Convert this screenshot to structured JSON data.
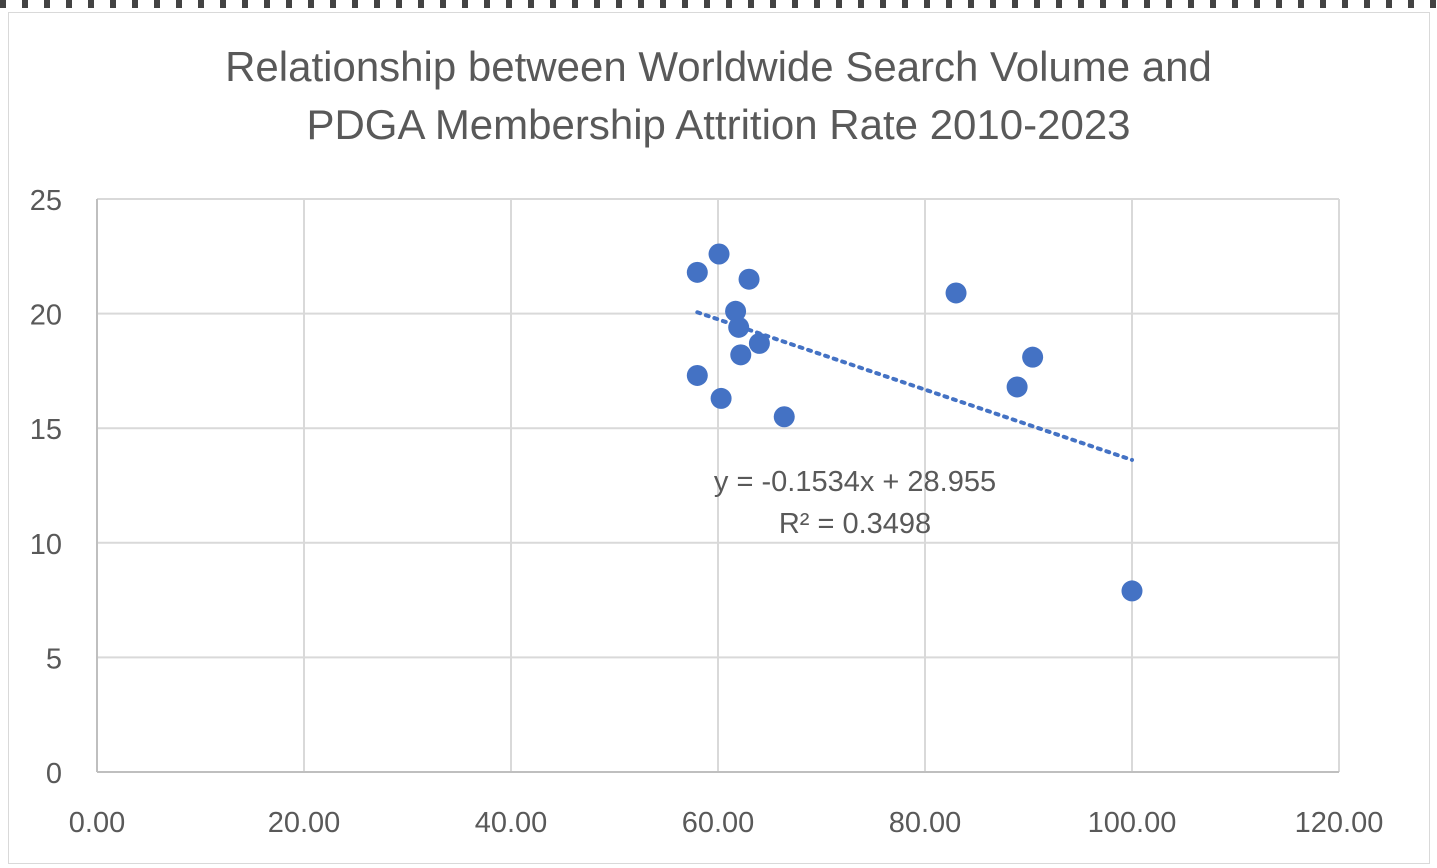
{
  "chart_data": {
    "type": "scatter",
    "title_line1": "Relationship between Worldwide Search Volume and",
    "title_line2": "PDGA Membership Attrition Rate 2010-2023",
    "xlabel": "",
    "ylabel": "",
    "xlim": [
      0,
      120
    ],
    "ylim": [
      0,
      25
    ],
    "x_ticks": [
      0,
      20,
      40,
      60,
      80,
      100,
      120
    ],
    "x_tick_labels": [
      "0.00",
      "20.00",
      "40.00",
      "60.00",
      "80.00",
      "100.00",
      "120.00"
    ],
    "y_ticks": [
      0,
      5,
      10,
      15,
      20,
      25
    ],
    "y_tick_labels": [
      "0",
      "5",
      "10",
      "15",
      "20",
      "25"
    ],
    "grid": true,
    "points": [
      {
        "x": 58.0,
        "y": 21.8
      },
      {
        "x": 60.1,
        "y": 22.6
      },
      {
        "x": 63.0,
        "y": 21.5
      },
      {
        "x": 61.7,
        "y": 20.1
      },
      {
        "x": 62.0,
        "y": 19.4
      },
      {
        "x": 62.2,
        "y": 18.2
      },
      {
        "x": 64.0,
        "y": 18.7
      },
      {
        "x": 58.0,
        "y": 17.3
      },
      {
        "x": 60.3,
        "y": 16.3
      },
      {
        "x": 66.4,
        "y": 15.5
      },
      {
        "x": 83.0,
        "y": 20.9
      },
      {
        "x": 90.4,
        "y": 18.1
      },
      {
        "x": 88.9,
        "y": 16.8
      },
      {
        "x": 100.0,
        "y": 7.9
      }
    ],
    "trendline": {
      "slope": -0.1534,
      "intercept": 28.955,
      "x_range": [
        58,
        100
      ],
      "equation": "y = -0.1534x + 28.955",
      "r2": "R² = 0.3498"
    },
    "colors": {
      "points": "#4472c4",
      "trendline": "#4472c4",
      "grid": "#d9d9d9",
      "text": "#595959",
      "axis": "#bfbfbf"
    }
  }
}
